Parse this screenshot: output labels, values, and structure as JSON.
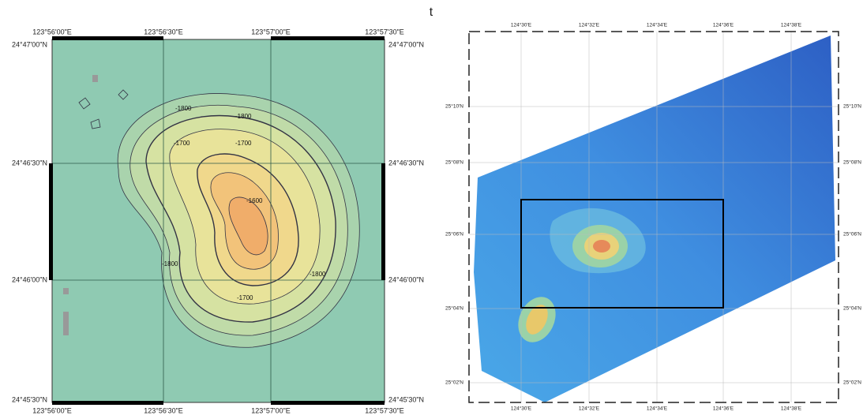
{
  "title": "t",
  "left_map": {
    "top_labels": [
      "123°56'00\"E",
      "123°56'30\"E",
      "123°57'00\"E",
      "123°57'30\"E"
    ],
    "bottom_labels": [
      "123°56'00\"E",
      "123°56'30\"E",
      "123°57'00\"E",
      "123°57'30\"E"
    ],
    "left_labels": [
      "24°47'00\"N",
      "24°46'30\"N",
      "24°46'00\"N",
      "24°45'30\"N"
    ],
    "right_labels": [
      "24°47'00\"N",
      "24°46'30\"N",
      "24°46'00\"N",
      "24°45'30\"N"
    ],
    "contour_labels": [
      "-1800",
      "-1800",
      "-1700",
      "-1700",
      "-1600",
      "-1800",
      "-1700",
      "-1800"
    ]
  },
  "right_map": {
    "top_labels": [
      "124°30'E",
      "124°32'E",
      "124°34'E",
      "124°36'E",
      "124°38'E"
    ],
    "bottom_labels": [
      "124°30'E",
      "124°32'E",
      "124°34'E",
      "124°36'E",
      "124°38'E"
    ],
    "left_labels": [
      "25°10'N",
      "25°08'N",
      "25°06'N",
      "25°04'N",
      "25°02'N"
    ],
    "right_labels": [
      "25°10'N",
      "25°08'N",
      "25°06'N",
      "25°04'N",
      "25°02'N"
    ]
  }
}
